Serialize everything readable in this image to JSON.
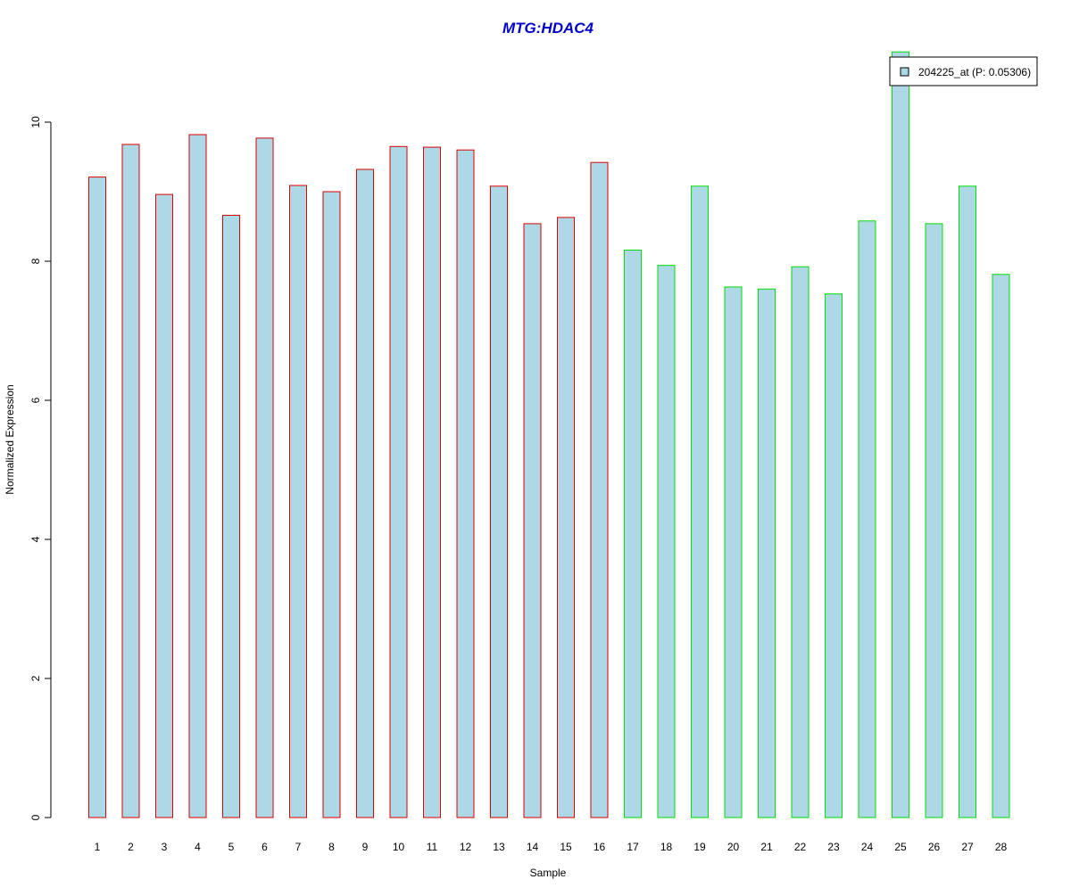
{
  "chart_data": {
    "type": "bar",
    "title": "MTG:HDAC4",
    "xlabel": "Sample",
    "ylabel": "Normalized Expression",
    "categories": [
      "1",
      "2",
      "3",
      "4",
      "5",
      "6",
      "7",
      "8",
      "9",
      "10",
      "11",
      "12",
      "13",
      "14",
      "15",
      "16",
      "17",
      "18",
      "19",
      "20",
      "21",
      "22",
      "23",
      "24",
      "25",
      "26",
      "27",
      "28"
    ],
    "series": [
      {
        "name": "204225_at (P: 0.05306)",
        "values": [
          9.21,
          9.68,
          8.96,
          9.82,
          8.66,
          9.77,
          9.09,
          9.0,
          9.32,
          9.65,
          9.64,
          9.6,
          9.08,
          8.54,
          8.63,
          9.42,
          8.16,
          7.94,
          9.08,
          7.63,
          7.6,
          7.92,
          7.53,
          8.58,
          11.01,
          8.54,
          9.08,
          7.81
        ]
      }
    ],
    "groups": [
      {
        "samples": [
          1,
          16
        ],
        "border_color": "#dd0000"
      },
      {
        "samples": [
          17,
          28
        ],
        "border_color": "#00dd00"
      }
    ],
    "bar_fill": "#add8e6",
    "title_color": "#0000cc",
    "ylim": [
      0,
      11
    ],
    "yticks": [
      0,
      2,
      4,
      6,
      8,
      10
    ],
    "grid": false,
    "legend_position": "top-right"
  }
}
